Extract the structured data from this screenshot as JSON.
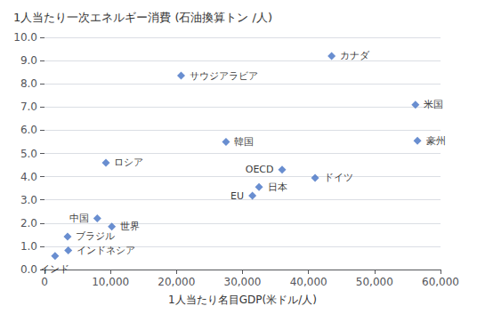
{
  "chart_data": {
    "type": "scatter",
    "title": "1人当たり一次エネルギー消費 (石油換算トン /人)",
    "xlabel": "1人当たり名目GDP(米ドル/人)",
    "labels": [
      "インド",
      "インドネシア",
      "ブラジル",
      "世界",
      "中国",
      "ロシア",
      "EU",
      "日本",
      "韓国",
      "OECD",
      "ドイツ",
      "カナダ",
      "サウジアラビア",
      "米国",
      "豪州"
    ],
    "x": [
      1600,
      3600,
      3500,
      10200,
      8000,
      9300,
      31500,
      32500,
      27500,
      36000,
      41000,
      43500,
      20700,
      56200,
      56500
    ],
    "values": [
      0.58,
      0.82,
      1.42,
      1.85,
      2.2,
      4.6,
      3.18,
      3.55,
      5.5,
      4.3,
      3.95,
      9.2,
      8.35,
      7.1,
      5.55
    ],
    "color": "#4472c4",
    "marker": "diamond",
    "xlim": [
      0,
      60000
    ],
    "ylim": [
      0.0,
      10.0
    ],
    "xticks": [
      0,
      {
        "value": 10000,
        "label": "10,000"
      },
      {
        "value": 20000,
        "label": "20,000"
      },
      {
        "value": 30000,
        "label": "30,000"
      },
      {
        "value": 40000,
        "label": "40,000"
      },
      {
        "value": 50000,
        "label": "50,000"
      },
      {
        "value": 60000,
        "label": "60,000"
      }
    ],
    "yticks": [
      {
        "value": 0.0,
        "label": "0.0"
      },
      {
        "value": 1.0,
        "label": "1.0"
      },
      {
        "value": 2.0,
        "label": "2.0"
      },
      {
        "value": 3.0,
        "label": "3.0"
      },
      {
        "value": 4.0,
        "label": "4.0"
      },
      {
        "value": 5.0,
        "label": "5.0"
      },
      {
        "value": 6.0,
        "label": "6.0"
      },
      {
        "value": 7.0,
        "label": "7.0"
      },
      {
        "value": 8.0,
        "label": "8.0"
      },
      {
        "value": 9.0,
        "label": "9.0"
      },
      {
        "value": 10.0,
        "label": "10.0"
      }
    ],
    "grid": true
  }
}
